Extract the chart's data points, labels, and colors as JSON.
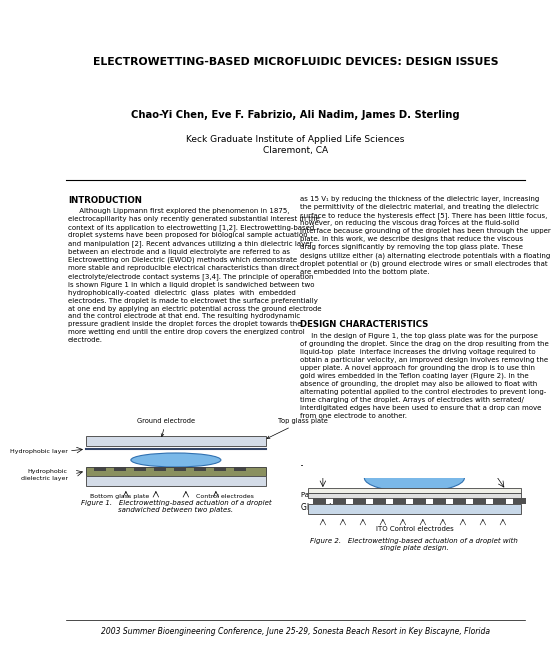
{
  "title": "ELECTROWETTING-BASED MICROFLUIDIC DEVICES: DESIGN ISSUES",
  "authors": "Chao-Yi Chen, Eve F. Fabrizio, Ali Nadim, James D. Sterling",
  "institution": "Keck Graduate Institute of Applied Life Sciences\nClaremont, CA",
  "footer": "2003 Summer Bioengineering Conference, June 25-29, Sonesta Beach Resort in Key Biscayne, Florida",
  "intro_heading": "INTRODUCTION",
  "design_heading": "DESIGN CHARACTERISTICS",
  "intro_para": "     Although Lippmann first explored the phenomenon in 1875,\nelectrocapillarity has only recently generated substantial interest in the\ncontext of its application to electrowetting [1,2]. Electrowetting-based\ndroplet systems have been proposed for biological sample actuation\nand manipulation [2]. Recent advances utilizing a thin dielectric layer\nbetween an electrode and a liquid electrolyte are referred to as\nElectrowetting on Dielectric (EWOD) methods which demonstrate\nmore stable and reproducible electrical characteristics than direct\nelectrolyte/electrode contact systems [3,4]. The principle of operation\nis shown Figure 1 in which a liquid droplet is sandwiched between two\nhydrophobically-coated  dielectric  glass  plates  with  embedded\nelectrodes. The droplet is made to electrowet the surface preferentially\nat one end by applying an electric potential across the ground electrode\nand the control electrode at that end. The resulting hydrodynamic\npressure gradient inside the droplet forces the droplet towards the\nmore wetting end until the entire drop covers the energized control\nelectrode.",
  "intro_para2": "as 15 V₁⁣ by reducing the thickness of the dielectric layer, increasing\nthe permittivity of the dielectric material, and treating the dielectric\nsurface to reduce the hysteresis effect [5]. There has been little focus,\nhowever, on reducing the viscous drag forces at the fluid-solid\ninterface because grounding of the droplet has been through the upper\nplate. In this work, we describe designs that reduce the viscous\ndrag forces significantly by removing the top glass plate. These\ndesigns utilize either (a) alternating electrode potentials with a floating\ndroplet potential or (b) ground electrode wires or small electrodes that\nare embedded into the bottom plate.",
  "design_para": "     In the design of Figure 1, the top glass plate was for the purpose\nof grounding the droplet. Since the drag on the drop resulting from the\nliquid-top  plate  interface increases the driving voltage required to\nobtain a particular velocity, an improved design involves removing the\nupper plate. A novel approach for grounding the drop is to use thin\ngold wires embedded in the Teflon coating layer (Figure 2). In the\nabsence of grounding, the droplet may also be allowed to float with\nalternating potential applied to the control electrodes to prevent long-\ntime charging of the droplet. Arrays of electrodes with serrated/\ninterdigitated edges have been used to ensure that a drop can move\nfrom one electrode to another.",
  "fig1_caption": "Figure 1.   Electrowetting-based actuation of a droplet\nsandwiched between two plates.",
  "fig2_caption": "Figure 2.   Electrowetting-based actuation of a droplet with\nsingle plate design.",
  "bg_color": "#ffffff",
  "text_color": "#000000"
}
